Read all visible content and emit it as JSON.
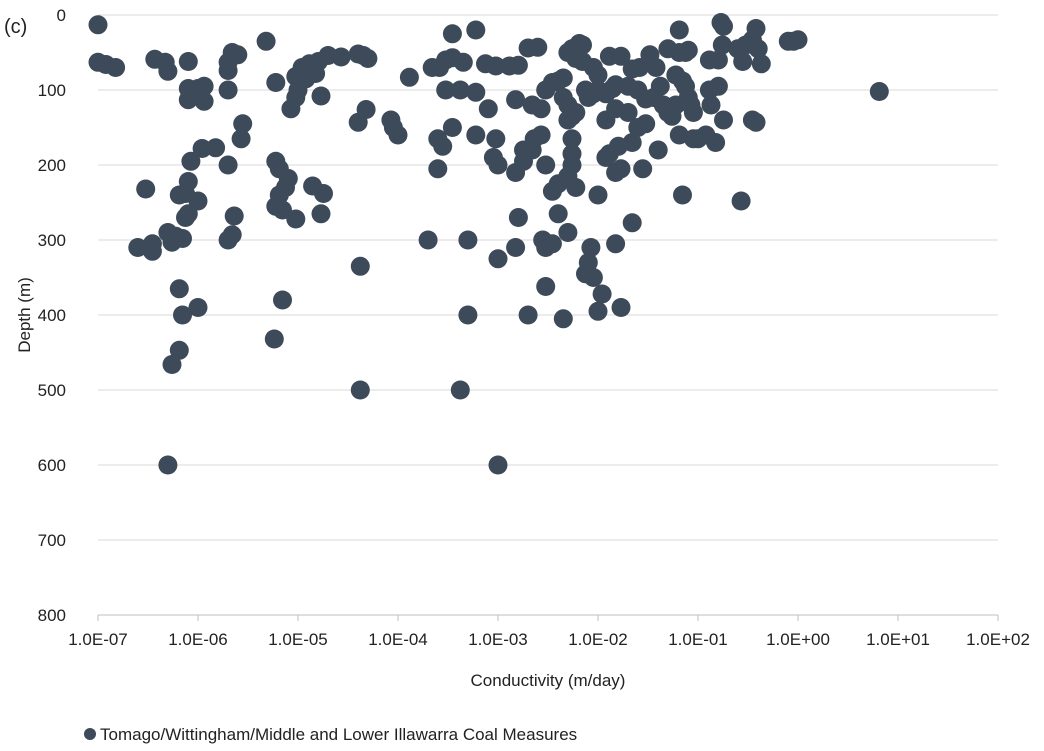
{
  "chart_data": {
    "type": "scatter",
    "panel_label": "(c)",
    "xlabel": "Conductivity (m/day)",
    "ylabel": "Depth (m)",
    "x_scale": "log",
    "xlim": [
      1e-07,
      100
    ],
    "ylim": [
      800,
      0
    ],
    "y_inverted": true,
    "grid": "horizontal",
    "legend_position": "bottom-left",
    "x_ticks": [
      {
        "value": 1e-07,
        "label": "1.0E-07"
      },
      {
        "value": 1e-06,
        "label": "1.0E-06"
      },
      {
        "value": 1e-05,
        "label": "1.0E-05"
      },
      {
        "value": 0.0001,
        "label": "1.0E-04"
      },
      {
        "value": 0.001,
        "label": "1.0E-03"
      },
      {
        "value": 0.01,
        "label": "1.0E-02"
      },
      {
        "value": 0.1,
        "label": "1.0E-01"
      },
      {
        "value": 1,
        "label": "1.0E+00"
      },
      {
        "value": 10,
        "label": "1.0E+01"
      },
      {
        "value": 100,
        "label": "1.0E+02"
      }
    ],
    "y_ticks": [
      {
        "value": 0,
        "label": "0"
      },
      {
        "value": 100,
        "label": "100"
      },
      {
        "value": 200,
        "label": "200"
      },
      {
        "value": 300,
        "label": "300"
      },
      {
        "value": 400,
        "label": "400"
      },
      {
        "value": 500,
        "label": "500"
      },
      {
        "value": 600,
        "label": "600"
      },
      {
        "value": 700,
        "label": "700"
      },
      {
        "value": 800,
        "label": "800"
      }
    ],
    "series": [
      {
        "name": "Tomago/Wittingham/Middle and Lower Illawarra Coal Measures",
        "color": "#3d4a59",
        "points": [
          [
            1e-07,
            13
          ],
          [
            1e-07,
            63
          ],
          [
            1.2e-07,
            66
          ],
          [
            1.5e-07,
            70
          ],
          [
            3.7e-07,
            59
          ],
          [
            4.7e-07,
            63
          ],
          [
            5e-07,
            75
          ],
          [
            8e-07,
            62
          ],
          [
            8e-07,
            98
          ],
          [
            8e-07,
            113
          ],
          [
            1e-06,
            98
          ],
          [
            1.15e-06,
            95
          ],
          [
            1.15e-06,
            115
          ],
          [
            2e-06,
            100
          ],
          [
            2e-06,
            74
          ],
          [
            2e-06,
            63
          ],
          [
            2.2e-06,
            50
          ],
          [
            2.5e-06,
            53
          ],
          [
            4.8e-06,
            35
          ],
          [
            6e-06,
            90
          ],
          [
            9.5e-06,
            82
          ],
          [
            1.1e-05,
            70
          ],
          [
            1.2e-05,
            85
          ],
          [
            1.3e-05,
            65
          ],
          [
            1.5e-05,
            78
          ],
          [
            8.5e-06,
            125
          ],
          [
            9.5e-06,
            110
          ],
          [
            1e-05,
            100
          ],
          [
            1.7e-05,
            108
          ],
          [
            1.6e-05,
            62
          ],
          [
            2e-05,
            54
          ],
          [
            2.7e-05,
            56
          ],
          [
            4e-05,
            52
          ],
          [
            4.5e-05,
            54
          ],
          [
            5e-05,
            58
          ],
          [
            4.8e-05,
            126
          ],
          [
            4e-05,
            143
          ],
          [
            8.5e-05,
            140
          ],
          [
            9e-05,
            150
          ],
          [
            0.0001,
            160
          ],
          [
            0.00013,
            83
          ],
          [
            0.00022,
            70
          ],
          [
            0.00026,
            70
          ],
          [
            0.00035,
            25
          ],
          [
            0.0006,
            20
          ],
          [
            0.0003,
            60
          ],
          [
            0.00035,
            57
          ],
          [
            0.00045,
            63
          ],
          [
            0.0003,
            100
          ],
          [
            0.00042,
            100
          ],
          [
            0.0006,
            103
          ],
          [
            0.0008,
            125
          ],
          [
            0.00075,
            65
          ],
          [
            0.00095,
            68
          ],
          [
            0.0013,
            68
          ],
          [
            0.0016,
            67
          ],
          [
            0.002,
            44
          ],
          [
            0.0025,
            43
          ],
          [
            0.0022,
            120
          ],
          [
            0.0027,
            125
          ],
          [
            0.003,
            100
          ],
          [
            0.0015,
            113
          ],
          [
            0.0035,
            90
          ],
          [
            0.004,
            88
          ],
          [
            0.0045,
            84
          ],
          [
            0.005,
            50
          ],
          [
            0.0055,
            45
          ],
          [
            0.006,
            43
          ],
          [
            0.0065,
            38
          ],
          [
            0.007,
            40
          ],
          [
            0.006,
            58
          ],
          [
            0.007,
            62
          ],
          [
            0.009,
            70
          ],
          [
            0.01,
            80
          ],
          [
            0.0045,
            110
          ],
          [
            0.005,
            120
          ],
          [
            0.0055,
            135
          ],
          [
            0.005,
            140
          ],
          [
            0.006,
            130
          ],
          [
            0.0075,
            100
          ],
          [
            0.008,
            110
          ],
          [
            0.009,
            105
          ],
          [
            0.01,
            100
          ],
          [
            0.012,
            105
          ],
          [
            0.014,
            98
          ],
          [
            0.013,
            55
          ],
          [
            0.017,
            55
          ],
          [
            0.022,
            72
          ],
          [
            0.026,
            70
          ],
          [
            0.033,
            53
          ],
          [
            0.038,
            70
          ],
          [
            0.015,
            93
          ],
          [
            0.02,
            95
          ],
          [
            0.025,
            100
          ],
          [
            0.03,
            112
          ],
          [
            0.036,
            110
          ],
          [
            0.042,
            95
          ],
          [
            0.02,
            130
          ],
          [
            0.025,
            150
          ],
          [
            0.03,
            145
          ],
          [
            0.015,
            125
          ],
          [
            0.012,
            140
          ],
          [
            0.022,
            170
          ],
          [
            0.016,
            175
          ],
          [
            0.04,
            180
          ],
          [
            0.065,
            20
          ],
          [
            0.05,
            45
          ],
          [
            0.065,
            50
          ],
          [
            0.075,
            50
          ],
          [
            0.08,
            47
          ],
          [
            0.13,
            60
          ],
          [
            0.16,
            60
          ],
          [
            0.17,
            10
          ],
          [
            0.18,
            15
          ],
          [
            0.175,
            40
          ],
          [
            0.25,
            45
          ],
          [
            0.3,
            40
          ],
          [
            0.35,
            33
          ],
          [
            0.38,
            18
          ],
          [
            0.4,
            45
          ],
          [
            0.43,
            65
          ],
          [
            0.28,
            62
          ],
          [
            0.8,
            35
          ],
          [
            0.9,
            35
          ],
          [
            1.0,
            33
          ],
          [
            6.5,
            102
          ],
          [
            0.06,
            80
          ],
          [
            0.07,
            88
          ],
          [
            0.075,
            95
          ],
          [
            0.08,
            110
          ],
          [
            0.06,
            120
          ],
          [
            0.055,
            135
          ],
          [
            0.085,
            120
          ],
          [
            0.09,
            130
          ],
          [
            0.13,
            100
          ],
          [
            0.135,
            120
          ],
          [
            0.16,
            95
          ],
          [
            0.045,
            120
          ],
          [
            0.05,
            130
          ],
          [
            0.18,
            140
          ],
          [
            0.065,
            160
          ],
          [
            0.09,
            165
          ],
          [
            0.1,
            165
          ],
          [
            0.12,
            160
          ],
          [
            0.15,
            170
          ],
          [
            0.35,
            140
          ],
          [
            0.38,
            143
          ],
          [
            0.0018,
            180
          ],
          [
            0.0018,
            195
          ],
          [
            0.0015,
            210
          ],
          [
            0.0023,
            165
          ],
          [
            0.0022,
            180
          ],
          [
            0.0027,
            160
          ],
          [
            0.003,
            200
          ],
          [
            0.0035,
            235
          ],
          [
            0.004,
            225
          ],
          [
            0.005,
            215
          ],
          [
            0.0055,
            200
          ],
          [
            0.0055,
            185
          ],
          [
            0.006,
            230
          ],
          [
            0.0055,
            165
          ],
          [
            0.0009,
            190
          ],
          [
            0.001,
            200
          ],
          [
            0.00095,
            165
          ],
          [
            0.0006,
            160
          ],
          [
            0.00035,
            150
          ],
          [
            0.00025,
            165
          ],
          [
            0.00028,
            175
          ],
          [
            0.00025,
            205
          ],
          [
            0.012,
            190
          ],
          [
            0.013,
            185
          ],
          [
            0.015,
            210
          ],
          [
            0.017,
            205
          ],
          [
            0.028,
            205
          ],
          [
            0.01,
            240
          ],
          [
            0.07,
            240
          ],
          [
            0.27,
            248
          ],
          [
            0.0016,
            270
          ],
          [
            0.004,
            265
          ],
          [
            0.022,
            277
          ],
          [
            0.0028,
            300
          ],
          [
            0.003,
            310
          ],
          [
            0.0035,
            305
          ],
          [
            0.005,
            290
          ],
          [
            0.0015,
            310
          ],
          [
            0.015,
            305
          ],
          [
            0.0085,
            310
          ],
          [
            0.008,
            330
          ],
          [
            0.0075,
            345
          ],
          [
            0.009,
            350
          ],
          [
            0.011,
            372
          ],
          [
            0.017,
            390
          ],
          [
            0.01,
            395
          ],
          [
            0.003,
            362
          ],
          [
            0.002,
            400
          ],
          [
            0.0045,
            405
          ],
          [
            0.001,
            325
          ],
          [
            0.0005,
            300
          ],
          [
            0.0005,
            400
          ],
          [
            0.0002,
            300
          ],
          [
            0.00042,
            500
          ],
          [
            0.001,
            600
          ],
          [
            4.2e-05,
            335
          ],
          [
            4.2e-05,
            500
          ],
          [
            7e-06,
            380
          ],
          [
            5.8e-06,
            432
          ],
          [
            6e-06,
            195
          ],
          [
            6.5e-06,
            205
          ],
          [
            8e-06,
            218
          ],
          [
            7.5e-06,
            230
          ],
          [
            6.5e-06,
            240
          ],
          [
            6e-06,
            255
          ],
          [
            7e-06,
            260
          ],
          [
            9.5e-06,
            272
          ],
          [
            1.4e-05,
            228
          ],
          [
            1.8e-05,
            238
          ],
          [
            1.7e-05,
            265
          ],
          [
            2.7e-06,
            165
          ],
          [
            2.8e-06,
            145
          ],
          [
            1.1e-06,
            178
          ],
          [
            1.5e-06,
            177
          ],
          [
            2e-06,
            200
          ],
          [
            8.5e-07,
            195
          ],
          [
            8e-07,
            222
          ],
          [
            7.5e-07,
            238
          ],
          [
            6.5e-07,
            240
          ],
          [
            1e-06,
            248
          ],
          [
            8e-07,
            265
          ],
          [
            7.5e-07,
            270
          ],
          [
            3e-07,
            232
          ],
          [
            2.5e-07,
            310
          ],
          [
            3.5e-07,
            305
          ],
          [
            3.5e-07,
            315
          ],
          [
            5e-07,
            290
          ],
          [
            5.5e-07,
            303
          ],
          [
            6e-07,
            295
          ],
          [
            7e-07,
            298
          ],
          [
            2e-06,
            300
          ],
          [
            2.2e-06,
            293
          ],
          [
            2.3e-06,
            268
          ],
          [
            6.5e-07,
            365
          ],
          [
            7e-07,
            400
          ],
          [
            1e-06,
            390
          ],
          [
            6.5e-07,
            447
          ],
          [
            5.5e-07,
            466
          ],
          [
            5e-07,
            600
          ]
        ]
      }
    ]
  }
}
